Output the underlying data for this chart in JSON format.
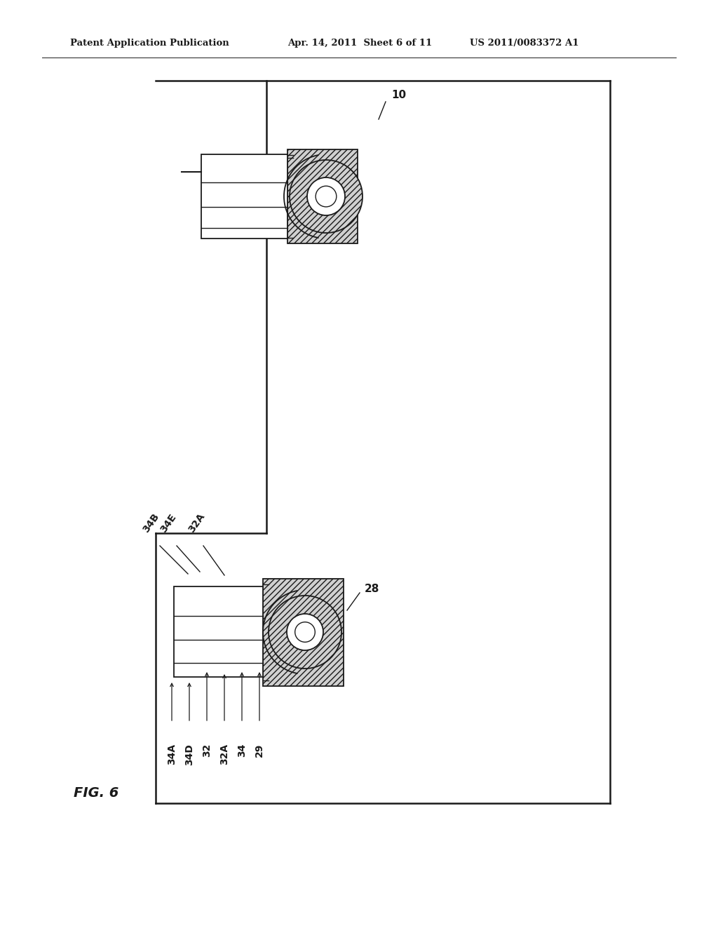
{
  "bg_color": "#ffffff",
  "fig_width": 10.24,
  "fig_height": 13.2,
  "header_text_left": "Patent Application Publication",
  "header_text_mid": "Apr. 14, 2011  Sheet 6 of 11",
  "header_text_right": "US 2011/0083372 A1",
  "fig_label": "FIG. 6",
  "label_10": "10",
  "label_28": "28",
  "label_29": "29",
  "label_32": "32",
  "label_32A_top": "32A",
  "label_32A_bot": "32A",
  "label_34": "34",
  "label_34A": "34A",
  "label_34B": "34B",
  "label_34D": "34D",
  "label_34E": "34E"
}
